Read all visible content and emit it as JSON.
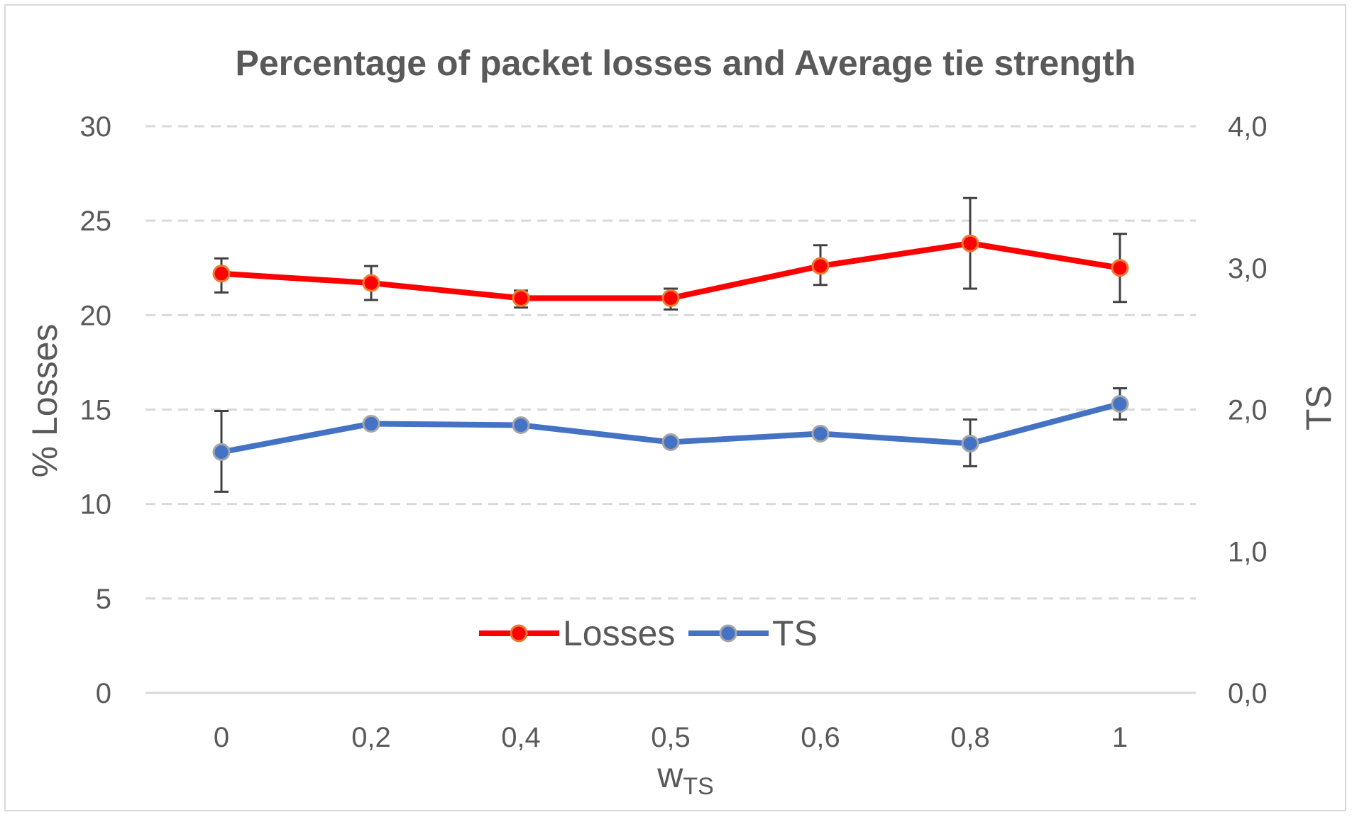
{
  "chart_data": {
    "type": "line",
    "title": "Percentage of packet losses and Average tie strength",
    "categories": [
      "0",
      "0,2",
      "0,4",
      "0,5",
      "0,6",
      "0,8",
      "1"
    ],
    "xlabel": {
      "main": "w",
      "sub": "TS"
    },
    "ylabel": "% Losses",
    "y2label": "TS",
    "ylim": [
      0,
      30
    ],
    "y2lim": [
      0,
      4
    ],
    "yticks": [
      "0",
      "5",
      "10",
      "15",
      "20",
      "25",
      "30"
    ],
    "y2ticks": [
      "0,0",
      "1,0",
      "2,0",
      "3,0",
      "4,0"
    ],
    "grid": true,
    "legend_position": "bottom-center",
    "series": [
      {
        "name": "Losses",
        "axis": "left",
        "color": "#ff0000",
        "marker_fill": "#ff0000",
        "marker_stroke": "#ed7d31",
        "values": [
          22.2,
          21.7,
          20.9,
          20.9,
          22.6,
          23.8,
          22.5
        ],
        "err_high": [
          23.0,
          22.6,
          21.3,
          21.4,
          23.7,
          26.2,
          24.3
        ],
        "err_low": [
          21.2,
          20.8,
          20.4,
          20.3,
          21.6,
          21.4,
          20.7
        ]
      },
      {
        "name": "TS",
        "axis": "right",
        "color": "#4472c4",
        "marker_fill": "#4472c4",
        "marker_stroke": "#a5a5a5",
        "values": [
          1.7,
          1.9,
          1.89,
          1.77,
          1.83,
          1.76,
          2.04
        ],
        "err_high": [
          1.99,
          1.92,
          1.89,
          1.77,
          1.83,
          1.93,
          2.15
        ],
        "err_low": [
          1.42,
          1.88,
          1.89,
          1.77,
          1.83,
          1.6,
          1.93
        ]
      }
    ]
  }
}
